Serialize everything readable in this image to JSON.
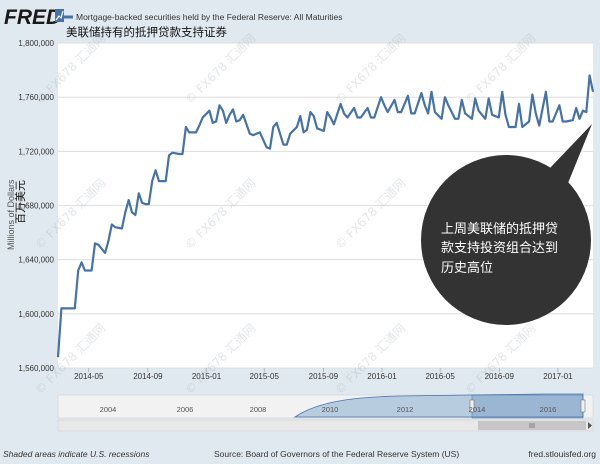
{
  "header": {
    "logo_text": "FRED",
    "legend_label": "Mortgage-backed securities held by the Federal Reserve: All Maturities",
    "chinese_title": "美联储持有的抵押贷款支持证券"
  },
  "axis": {
    "ylabel": "Millions of Dollars",
    "ylabel_cn": "百万美元"
  },
  "annotation": {
    "lines": [
      "上周美联储的抵押贷",
      "款支持投资组合达到",
      "历史高位"
    ]
  },
  "watermark": "FX678 汇通网",
  "navigator": {
    "years": [
      "2004",
      "2006",
      "2008",
      "2010",
      "2012",
      "2014",
      "2016"
    ]
  },
  "footer": {
    "recession_note": "Shaded areas indicate U.S. recessions",
    "source": "Source: Board of Governors of the Federal Reserve System (US)",
    "site": "fred.stlouisfed.org"
  },
  "colors": {
    "line": "#4572a7",
    "background": "#e1e9f0",
    "plot_area": "#ffffff",
    "annotation_bubble": "#333333"
  },
  "chart_data": {
    "type": "line",
    "title": "美联储持有的抵押贷款支持证券",
    "xlabel": "",
    "ylabel": "Millions of Dollars",
    "ylim": [
      1560000,
      1800000
    ],
    "y_ticks": [
      1560000,
      1600000,
      1640000,
      1680000,
      1720000,
      1760000,
      1800000
    ],
    "y_tick_labels": [
      "1,560,000",
      "1,600,000",
      "1,640,000",
      "1,680,000",
      "1,720,000",
      "1,760,000",
      "1,800,000"
    ],
    "x_tick_labels": [
      "2014-05",
      "2014-09",
      "2015-01",
      "2015-05",
      "2015-09",
      "2016-01",
      "2016-05",
      "2016-09",
      "2017-01"
    ],
    "x_tick_dates": [
      "2014-05-01",
      "2014-09-01",
      "2015-01-01",
      "2015-05-01",
      "2015-09-01",
      "2016-01-01",
      "2016-05-01",
      "2016-09-01",
      "2017-01-01"
    ],
    "xlim": [
      "2014-02-26",
      "2017-03-15"
    ],
    "grid": true,
    "series": [
      {
        "name": "Mortgage-backed securities held by the Federal Reserve: All Maturities",
        "x": [
          "2014-02-26",
          "2014-03-05",
          "2014-03-19",
          "2014-04-02",
          "2014-04-09",
          "2014-04-16",
          "2014-04-23",
          "2014-05-07",
          "2014-05-14",
          "2014-05-21",
          "2014-06-04",
          "2014-06-11",
          "2014-06-18",
          "2014-06-25",
          "2014-07-09",
          "2014-07-16",
          "2014-07-23",
          "2014-07-30",
          "2014-08-06",
          "2014-08-13",
          "2014-08-20",
          "2014-08-27",
          "2014-09-03",
          "2014-09-10",
          "2014-09-17",
          "2014-09-24",
          "2014-10-08",
          "2014-10-15",
          "2014-10-22",
          "2014-11-05",
          "2014-11-12",
          "2014-11-19",
          "2014-11-26",
          "2014-12-10",
          "2014-12-17",
          "2014-12-24",
          "2015-01-07",
          "2015-01-14",
          "2015-01-21",
          "2015-01-28",
          "2015-02-04",
          "2015-02-11",
          "2015-02-18",
          "2015-02-25",
          "2015-03-04",
          "2015-03-11",
          "2015-03-18",
          "2015-04-01",
          "2015-04-08",
          "2015-04-15",
          "2015-04-22",
          "2015-05-06",
          "2015-05-13",
          "2015-05-20",
          "2015-05-27",
          "2015-06-10",
          "2015-06-17",
          "2015-06-24",
          "2015-07-08",
          "2015-07-15",
          "2015-07-22",
          "2015-07-29",
          "2015-08-05",
          "2015-08-12",
          "2015-08-19",
          "2015-09-02",
          "2015-09-09",
          "2015-09-16",
          "2015-09-23",
          "2015-10-07",
          "2015-10-14",
          "2015-10-21",
          "2015-11-04",
          "2015-11-11",
          "2015-11-18",
          "2015-12-02",
          "2015-12-09",
          "2015-12-16",
          "2015-12-30",
          "2016-01-06",
          "2016-01-13",
          "2016-01-27",
          "2016-02-03",
          "2016-02-10",
          "2016-02-24",
          "2016-03-02",
          "2016-03-09",
          "2016-03-23",
          "2016-03-30",
          "2016-04-06",
          "2016-04-13",
          "2016-04-20",
          "2016-05-04",
          "2016-05-11",
          "2016-05-18",
          "2016-06-01",
          "2016-06-08",
          "2016-06-15",
          "2016-06-22",
          "2016-07-06",
          "2016-07-13",
          "2016-07-20",
          "2016-08-03",
          "2016-08-10",
          "2016-08-17",
          "2016-08-31",
          "2016-09-07",
          "2016-09-14",
          "2016-09-21",
          "2016-10-05",
          "2016-10-12",
          "2016-10-19",
          "2016-11-02",
          "2016-11-09",
          "2016-11-16",
          "2016-11-23",
          "2016-12-07",
          "2016-12-14",
          "2016-12-21",
          "2017-01-04",
          "2017-01-11",
          "2017-01-18",
          "2017-02-01",
          "2017-02-08",
          "2017-02-15",
          "2017-02-22",
          "2017-03-01",
          "2017-03-08",
          "2017-03-15"
        ],
        "y": [
          1568000,
          1604000,
          1604000,
          1604000,
          1632000,
          1638000,
          1632000,
          1632000,
          1652000,
          1651000,
          1645000,
          1654000,
          1666000,
          1664000,
          1663000,
          1675000,
          1684000,
          1675000,
          1673000,
          1689000,
          1682000,
          1681000,
          1681000,
          1698000,
          1706000,
          1698000,
          1698000,
          1717000,
          1719000,
          1718000,
          1718000,
          1738000,
          1734000,
          1734000,
          1739000,
          1745000,
          1750000,
          1741000,
          1742000,
          1754000,
          1750000,
          1741000,
          1747000,
          1751000,
          1742000,
          1743000,
          1747000,
          1733000,
          1732000,
          1733000,
          1734000,
          1723000,
          1722000,
          1738000,
          1741000,
          1725000,
          1725000,
          1733000,
          1738000,
          1746000,
          1734000,
          1736000,
          1749000,
          1746000,
          1737000,
          1735000,
          1749000,
          1745000,
          1740000,
          1755000,
          1748000,
          1745000,
          1752000,
          1745000,
          1745000,
          1752000,
          1745000,
          1745000,
          1760000,
          1754000,
          1749000,
          1758000,
          1749000,
          1749000,
          1761000,
          1748000,
          1748000,
          1763000,
          1754000,
          1748000,
          1764000,
          1749000,
          1744000,
          1760000,
          1754000,
          1744000,
          1744000,
          1758000,
          1748000,
          1744000,
          1759000,
          1750000,
          1744000,
          1759000,
          1747000,
          1745000,
          1764000,
          1747000,
          1738000,
          1738000,
          1755000,
          1738000,
          1742000,
          1762000,
          1748000,
          1739000,
          1764000,
          1742000,
          1742000,
          1754000,
          1742000,
          1742000,
          1743000,
          1752000,
          1744000,
          1750000,
          1749000,
          1776000,
          1764000
        ]
      }
    ]
  }
}
